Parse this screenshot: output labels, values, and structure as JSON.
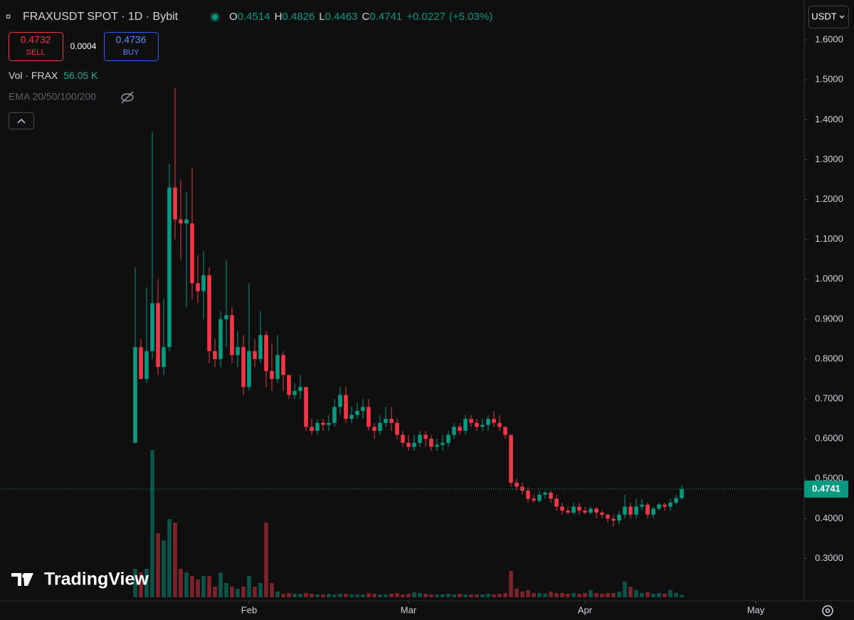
{
  "header": {
    "symbol": "FRAXUSDT SPOT · 1D · Bybit",
    "ohlc_letters": [
      "O",
      "H",
      "L",
      "C"
    ],
    "change_label": "+0.0227",
    "change_pct_label": "(+5.03%)",
    "currency": "USDT"
  },
  "trade": {
    "sell_price": "0.4732",
    "sell_label": "SELL",
    "spread": "0.0004",
    "buy_price": "0.4736",
    "buy_label": "BUY"
  },
  "indicators": {
    "volume_name": "Vol · FRAX",
    "volume_label": "56.05 K",
    "ema_label": "EMA 20/50/100/200"
  },
  "logo": "TradingView",
  "chart_data": {
    "type": "candlestick",
    "up_color": "#089981",
    "down_color": "#f23645",
    "open": [
      0.59,
      0.83,
      0.75,
      0.82,
      0.94,
      0.78,
      0.83,
      1.23,
      1.15,
      1.14,
      1.14,
      0.99,
      0.97,
      1.01,
      0.82,
      0.8,
      0.9,
      0.91,
      0.81,
      0.83,
      0.73,
      0.82,
      0.8,
      0.86,
      0.77,
      0.75,
      0.81,
      0.76,
      0.71,
      0.72,
      0.73,
      0.63,
      0.62,
      0.64,
      0.635,
      0.64,
      0.68,
      0.71,
      0.65,
      0.66,
      0.67,
      0.68,
      0.63,
      0.62,
      0.64,
      0.65,
      0.64,
      0.61,
      0.59,
      0.58,
      0.59,
      0.61,
      0.6,
      0.58,
      0.585,
      0.59,
      0.61,
      0.63,
      0.62,
      0.65,
      0.64,
      0.63,
      0.635,
      0.65,
      0.64,
      0.63,
      0.61,
      0.49,
      0.48,
      0.47,
      0.45,
      0.445,
      0.46,
      0.465,
      0.45,
      0.43,
      0.42,
      0.415,
      0.43,
      0.42,
      0.415,
      0.425,
      0.415,
      0.41,
      0.4,
      0.395,
      0.41,
      0.43,
      0.41,
      0.43,
      0.435,
      0.41,
      0.425,
      0.435,
      0.43,
      0.44,
      0.4514
    ],
    "high": [
      1.03,
      0.85,
      0.98,
      1.37,
      1.0,
      0.95,
      1.29,
      1.48,
      1.25,
      1.22,
      1.28,
      1.06,
      1.07,
      1.03,
      0.85,
      0.92,
      1.05,
      0.93,
      0.87,
      0.86,
      0.99,
      0.85,
      0.92,
      0.87,
      0.84,
      0.86,
      0.82,
      0.76,
      0.74,
      0.76,
      0.73,
      0.65,
      0.65,
      0.65,
      0.66,
      0.7,
      0.73,
      0.73,
      0.68,
      0.69,
      0.7,
      0.7,
      0.64,
      0.66,
      0.68,
      0.68,
      0.65,
      0.62,
      0.61,
      0.61,
      0.62,
      0.62,
      0.61,
      0.6,
      0.61,
      0.62,
      0.64,
      0.64,
      0.66,
      0.66,
      0.65,
      0.65,
      0.66,
      0.67,
      0.66,
      0.63,
      0.61,
      0.5,
      0.49,
      0.48,
      0.46,
      0.47,
      0.47,
      0.47,
      0.46,
      0.44,
      0.43,
      0.44,
      0.44,
      0.43,
      0.43,
      0.43,
      0.42,
      0.41,
      0.41,
      0.42,
      0.46,
      0.44,
      0.45,
      0.45,
      0.44,
      0.43,
      0.44,
      0.44,
      0.45,
      0.46,
      0.4826
    ],
    "low": [
      0.59,
      0.75,
      0.74,
      0.8,
      0.76,
      0.76,
      0.82,
      1.1,
      1.05,
      0.93,
      0.95,
      0.94,
      0.9,
      0.79,
      0.78,
      0.78,
      0.83,
      0.79,
      0.78,
      0.71,
      0.72,
      0.78,
      0.79,
      0.73,
      0.72,
      0.74,
      0.72,
      0.7,
      0.7,
      0.7,
      0.62,
      0.61,
      0.61,
      0.62,
      0.62,
      0.63,
      0.66,
      0.64,
      0.64,
      0.65,
      0.65,
      0.62,
      0.6,
      0.61,
      0.63,
      0.62,
      0.6,
      0.58,
      0.57,
      0.57,
      0.58,
      0.58,
      0.57,
      0.57,
      0.57,
      0.58,
      0.6,
      0.61,
      0.61,
      0.63,
      0.62,
      0.62,
      0.62,
      0.63,
      0.62,
      0.6,
      0.48,
      0.47,
      0.46,
      0.44,
      0.44,
      0.44,
      0.45,
      0.44,
      0.42,
      0.41,
      0.41,
      0.41,
      0.41,
      0.41,
      0.41,
      0.4,
      0.4,
      0.39,
      0.38,
      0.385,
      0.4,
      0.4,
      0.4,
      0.42,
      0.4,
      0.4,
      0.42,
      0.42,
      0.42,
      0.435,
      0.4463
    ],
    "close": [
      0.83,
      0.75,
      0.82,
      0.94,
      0.78,
      0.83,
      1.23,
      1.15,
      1.14,
      1.15,
      0.99,
      0.97,
      1.01,
      0.82,
      0.8,
      0.9,
      0.91,
      0.81,
      0.83,
      0.73,
      0.82,
      0.8,
      0.86,
      0.77,
      0.75,
      0.81,
      0.76,
      0.71,
      0.72,
      0.73,
      0.63,
      0.62,
      0.64,
      0.635,
      0.64,
      0.68,
      0.71,
      0.65,
      0.66,
      0.67,
      0.68,
      0.63,
      0.62,
      0.64,
      0.65,
      0.64,
      0.61,
      0.59,
      0.58,
      0.59,
      0.61,
      0.6,
      0.58,
      0.585,
      0.59,
      0.61,
      0.63,
      0.62,
      0.65,
      0.64,
      0.63,
      0.635,
      0.65,
      0.64,
      0.63,
      0.61,
      0.49,
      0.48,
      0.47,
      0.45,
      0.445,
      0.46,
      0.465,
      0.45,
      0.43,
      0.42,
      0.415,
      0.43,
      0.42,
      0.415,
      0.425,
      0.415,
      0.41,
      0.4,
      0.395,
      0.41,
      0.43,
      0.41,
      0.43,
      0.435,
      0.41,
      0.425,
      0.435,
      0.43,
      0.44,
      0.4514,
      0.4741
    ],
    "volume": [
      744000,
      651000,
      744000,
      3850200,
      1674000,
      1488000,
      2046000,
      1953000,
      744000,
      651000,
      558000,
      465000,
      558000,
      558000,
      279000,
      651000,
      372000,
      279000,
      223200,
      279000,
      558000,
      279000,
      372000,
      1953000,
      372000,
      148800,
      93000,
      111600,
      93000,
      93000,
      111600,
      93000,
      74400,
      74400,
      93000,
      74400,
      93000,
      93000,
      74400,
      74400,
      74400,
      111600,
      93000,
      74400,
      74400,
      93000,
      111600,
      74400,
      93000,
      130200,
      111600,
      93000,
      74400,
      74400,
      74400,
      93000,
      74400,
      93000,
      74400,
      74400,
      74400,
      74400,
      93000,
      74400,
      93000,
      111600,
      688200,
      223200,
      148800,
      186000,
      111600,
      111600,
      93000,
      148800,
      111600,
      111600,
      93000,
      111600,
      93000,
      111600,
      186000,
      111600,
      93000,
      111600,
      111600,
      148800,
      409200,
      279000,
      186000,
      111600,
      130200,
      93000,
      111600,
      93000,
      186000,
      111600,
      56050
    ],
    "xlim": [
      -23.75,
      117.5
    ],
    "xticks": [
      {
        "value": 20,
        "label": "Feb"
      },
      {
        "value": 48,
        "label": "Mar"
      },
      {
        "value": 79,
        "label": "Apr"
      },
      {
        "value": 109,
        "label": "May"
      }
    ],
    "ylim": [
      0.194,
      1.7
    ],
    "yticks": [
      {
        "value": 1.6,
        "label": "1.6000"
      },
      {
        "value": 1.5,
        "label": "1.5000"
      },
      {
        "value": 1.4,
        "label": "1.4000"
      },
      {
        "value": 1.3,
        "label": "1.3000"
      },
      {
        "value": 1.2,
        "label": "1.2000"
      },
      {
        "value": 1.1,
        "label": "1.1000"
      },
      {
        "value": 1.0,
        "label": "1.0000"
      },
      {
        "value": 0.9,
        "label": "0.9000"
      },
      {
        "value": 0.8,
        "label": "0.8000"
      },
      {
        "value": 0.7,
        "label": "0.7000"
      },
      {
        "value": 0.6,
        "label": "0.6000"
      },
      {
        "value": 0.5,
        "label": "0.5000"
      },
      {
        "value": 0.4,
        "label": "0.4000"
      },
      {
        "value": 0.3,
        "label": "0.3000"
      }
    ],
    "volume_ylim": [
      0,
      4000000
    ],
    "grid": false
  }
}
